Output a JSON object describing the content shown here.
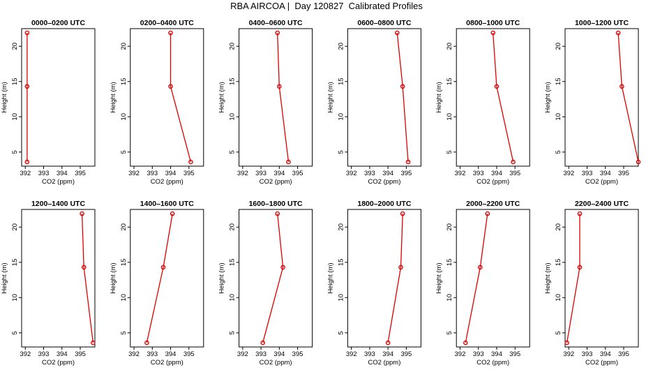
{
  "figure": {
    "title": "RBA AIRCOA |  Day 120827  Calibrated Profiles"
  },
  "colors": {
    "series": "#dd0000",
    "axis": "#000000"
  },
  "chart_data": [
    {
      "type": "line",
      "title": "0000–0200 UTC",
      "xlabel": "CO2 (ppm)",
      "ylabel": "Height (m)",
      "xlim": [
        391.8,
        395.8
      ],
      "ylim": [
        3,
        22.5
      ],
      "grid": false,
      "xticks": [
        392,
        393,
        394,
        395
      ],
      "yticks": [
        5,
        10,
        15,
        20
      ],
      "x": [
        392.1,
        392.1,
        392.1
      ],
      "y": [
        3.6,
        14.3,
        21.9
      ]
    },
    {
      "type": "line",
      "title": "0200–0400 UTC",
      "xlabel": "CO2 (ppm)",
      "ylabel": "Height (m)",
      "xlim": [
        391.8,
        395.8
      ],
      "ylim": [
        3,
        22.5
      ],
      "grid": false,
      "xticks": [
        392,
        393,
        394,
        395
      ],
      "yticks": [
        5,
        10,
        15,
        20
      ],
      "x": [
        395.1,
        394.0,
        394.0
      ],
      "y": [
        3.6,
        14.3,
        21.9
      ]
    },
    {
      "type": "line",
      "title": "0400–0600 UTC",
      "xlabel": "CO2 (ppm)",
      "ylabel": "Height (m)",
      "xlim": [
        391.8,
        395.8
      ],
      "ylim": [
        3,
        22.5
      ],
      "grid": false,
      "xticks": [
        392,
        393,
        394,
        395
      ],
      "yticks": [
        5,
        10,
        15,
        20
      ],
      "x": [
        394.5,
        394.0,
        393.9
      ],
      "y": [
        3.6,
        14.3,
        21.9
      ]
    },
    {
      "type": "line",
      "title": "0600–0800 UTC",
      "xlabel": "CO2 (ppm)",
      "ylabel": "Height (m)",
      "xlim": [
        391.8,
        395.8
      ],
      "ylim": [
        3,
        22.5
      ],
      "grid": false,
      "xticks": [
        392,
        393,
        394,
        395
      ],
      "yticks": [
        5,
        10,
        15,
        20
      ],
      "x": [
        395.1,
        394.8,
        394.5
      ],
      "y": [
        3.6,
        14.3,
        21.9
      ]
    },
    {
      "type": "line",
      "title": "0800–1000 UTC",
      "xlabel": "CO2 (ppm)",
      "ylabel": "Height (m)",
      "xlim": [
        391.8,
        395.8
      ],
      "ylim": [
        3,
        22.5
      ],
      "grid": false,
      "xticks": [
        392,
        393,
        394,
        395
      ],
      "yticks": [
        5,
        10,
        15,
        20
      ],
      "x": [
        394.9,
        394.0,
        393.8
      ],
      "y": [
        3.6,
        14.3,
        21.9
      ]
    },
    {
      "type": "line",
      "title": "1000–1200 UTC",
      "xlabel": "CO2 (ppm)",
      "ylabel": "Height (m)",
      "xlim": [
        391.8,
        395.8
      ],
      "ylim": [
        3,
        22.5
      ],
      "grid": false,
      "xticks": [
        392,
        393,
        394,
        395
      ],
      "yticks": [
        5,
        10,
        15,
        20
      ],
      "x": [
        395.8,
        394.9,
        394.7
      ],
      "y": [
        3.6,
        14.3,
        21.9
      ]
    },
    {
      "type": "line",
      "title": "1200–1400 UTC",
      "xlabel": "CO2 (ppm)",
      "ylabel": "Height (m)",
      "xlim": [
        391.8,
        395.8
      ],
      "ylim": [
        3,
        22.5
      ],
      "grid": false,
      "xticks": [
        392,
        393,
        394,
        395
      ],
      "yticks": [
        5,
        10,
        15,
        20
      ],
      "x": [
        395.7,
        395.2,
        395.1
      ],
      "y": [
        3.6,
        14.3,
        21.9
      ]
    },
    {
      "type": "line",
      "title": "1400–1600 UTC",
      "xlabel": "CO2 (ppm)",
      "ylabel": "Height (m)",
      "xlim": [
        391.8,
        395.8
      ],
      "ylim": [
        3,
        22.5
      ],
      "grid": false,
      "xticks": [
        392,
        393,
        394,
        395
      ],
      "yticks": [
        5,
        10,
        15,
        20
      ],
      "x": [
        392.7,
        393.6,
        394.1
      ],
      "y": [
        3.6,
        14.3,
        21.9
      ]
    },
    {
      "type": "line",
      "title": "1600–1800 UTC",
      "xlabel": "CO2 (ppm)",
      "ylabel": "Height (m)",
      "xlim": [
        391.8,
        395.8
      ],
      "ylim": [
        3,
        22.5
      ],
      "grid": false,
      "xticks": [
        392,
        393,
        394,
        395
      ],
      "yticks": [
        5,
        10,
        15,
        20
      ],
      "x": [
        393.1,
        394.2,
        393.9
      ],
      "y": [
        3.6,
        14.3,
        21.9
      ]
    },
    {
      "type": "line",
      "title": "1800–2000 UTC",
      "xlabel": "CO2 (ppm)",
      "ylabel": "Height (m)",
      "xlim": [
        391.8,
        395.8
      ],
      "ylim": [
        3,
        22.5
      ],
      "grid": false,
      "xticks": [
        392,
        393,
        394,
        395
      ],
      "yticks": [
        5,
        10,
        15,
        20
      ],
      "x": [
        394.0,
        394.7,
        394.8
      ],
      "y": [
        3.6,
        14.3,
        21.9
      ]
    },
    {
      "type": "line",
      "title": "2000–2200 UTC",
      "xlabel": "CO2 (ppm)",
      "ylabel": "Height (m)",
      "xlim": [
        391.8,
        395.8
      ],
      "ylim": [
        3,
        22.5
      ],
      "grid": false,
      "xticks": [
        392,
        393,
        394,
        395
      ],
      "yticks": [
        5,
        10,
        15,
        20
      ],
      "x": [
        392.3,
        393.1,
        393.5
      ],
      "y": [
        3.6,
        14.3,
        21.9
      ]
    },
    {
      "type": "line",
      "title": "2200–2400 UTC",
      "xlabel": "CO2 (ppm)",
      "ylabel": "Height (m)",
      "xlim": [
        391.8,
        395.8
      ],
      "ylim": [
        3,
        22.5
      ],
      "grid": false,
      "xticks": [
        392,
        393,
        394,
        395
      ],
      "yticks": [
        5,
        10,
        15,
        20
      ],
      "x": [
        391.9,
        392.6,
        392.6
      ],
      "y": [
        3.6,
        14.3,
        21.9
      ]
    }
  ]
}
